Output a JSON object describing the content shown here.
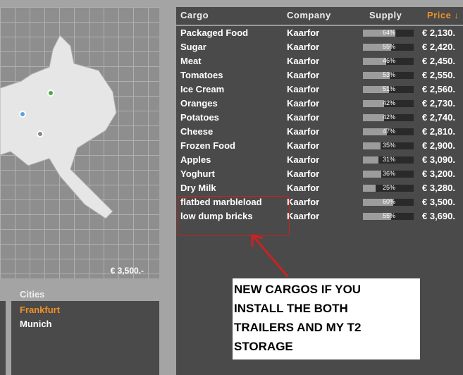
{
  "map": {
    "price": "€ 3,500.-"
  },
  "cities": {
    "label": "Cities",
    "items": [
      {
        "name": "Frankfurt",
        "selected": true
      },
      {
        "name": "Munich",
        "selected": false
      }
    ]
  },
  "table": {
    "headers": {
      "cargo": "Cargo",
      "company": "Company",
      "supply": "Supply",
      "price": "Price ↓"
    },
    "rows": [
      {
        "cargo": "Packaged Food",
        "company": "Kaarfor",
        "supply": 64,
        "supply_label": "64%",
        "price": "€ 2,130."
      },
      {
        "cargo": "Sugar",
        "company": "Kaarfor",
        "supply": 55,
        "supply_label": "55%",
        "price": "€ 2,420."
      },
      {
        "cargo": "Meat",
        "company": "Kaarfor",
        "supply": 46,
        "supply_label": "46%",
        "price": "€ 2,450."
      },
      {
        "cargo": "Tomatoes",
        "company": "Kaarfor",
        "supply": 53,
        "supply_label": "53%",
        "price": "€ 2,550."
      },
      {
        "cargo": "Ice Cream",
        "company": "Kaarfor",
        "supply": 51,
        "supply_label": "51%",
        "price": "€ 2,560."
      },
      {
        "cargo": "Oranges",
        "company": "Kaarfor",
        "supply": 42,
        "supply_label": "42%",
        "price": "€ 2,730."
      },
      {
        "cargo": "Potatoes",
        "company": "Kaarfor",
        "supply": 42,
        "supply_label": "42%",
        "price": "€ 2,740."
      },
      {
        "cargo": "Cheese",
        "company": "Kaarfor",
        "supply": 47,
        "supply_label": "47%",
        "price": "€ 2,810."
      },
      {
        "cargo": "Frozen Food",
        "company": "Kaarfor",
        "supply": 35,
        "supply_label": "35%",
        "price": "€ 2,900."
      },
      {
        "cargo": "Apples",
        "company": "Kaarfor",
        "supply": 31,
        "supply_label": "31%",
        "price": "€ 3,090."
      },
      {
        "cargo": "Yoghurt",
        "company": "Kaarfor",
        "supply": 36,
        "supply_label": "36%",
        "price": "€ 3,200."
      },
      {
        "cargo": "Dry Milk",
        "company": "Kaarfor",
        "supply": 25,
        "supply_label": "25%",
        "price": "€ 3,280."
      },
      {
        "cargo": "flatbed marbleload",
        "company": "Kaarfor",
        "supply": 60,
        "supply_label": "60%",
        "price": "€ 3,500."
      },
      {
        "cargo": "low dump bricks",
        "company": "Kaarfor",
        "supply": 55,
        "supply_label": "55%",
        "price": "€ 3,690."
      }
    ]
  },
  "annotation": {
    "text": "NEW CARGOS IF YOU\nINSTALL THE BOTH\nTRAILERS AND MY T2\nSTORAGE"
  },
  "colors": {
    "accent": "#f0902a",
    "panel": "#4a4a4a",
    "annotation": "#d02020"
  }
}
